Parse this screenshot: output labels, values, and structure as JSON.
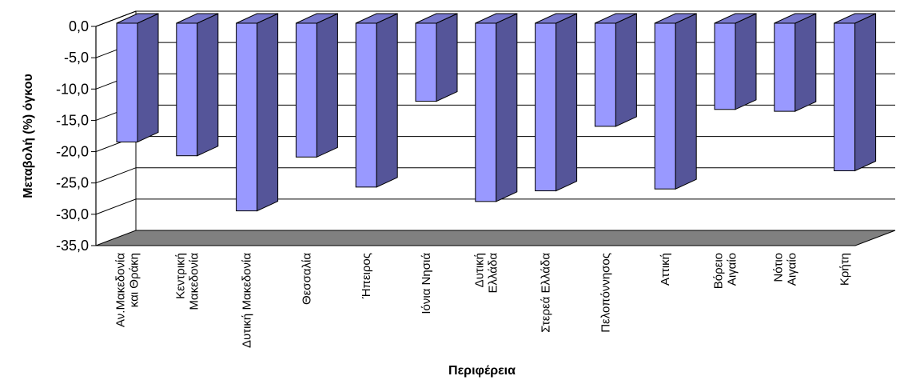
{
  "chart_data": {
    "type": "bar",
    "title": "",
    "xlabel": "Περιφέρεια",
    "ylabel": "Μεταβολή (%) όγκου",
    "ylim": [
      -35,
      0
    ],
    "yticks": [
      "0,0",
      "-5,0",
      "-10,0",
      "-15,0",
      "-20,0",
      "-25,0",
      "-30,0",
      "-35,0"
    ],
    "grid": true,
    "style": "3d",
    "categories": [
      [
        "Αν.Μακεδονία",
        "και Θράκη"
      ],
      [
        "Κεντρική",
        "Μακεδονία"
      ],
      [
        "Δυτική Μακεδονία"
      ],
      [
        "Θεσσαλία"
      ],
      [
        "Ήπειρος"
      ],
      [
        "Ιόνια Νησιά"
      ],
      [
        "Δυτική",
        "Ελλάδα"
      ],
      [
        "Στερεά Ελλάδα"
      ],
      [
        "Πελοπόννησος"
      ],
      [
        "Αττική"
      ],
      [
        "Βόρειο",
        "Αιγαίο"
      ],
      [
        "Νότιο",
        "Αιγαίο"
      ],
      [
        "Κρήτη"
      ]
    ],
    "values": [
      -20.5,
      -22.7,
      -31.5,
      -22.9,
      -27.7,
      -14.0,
      -30.0,
      -28.3,
      -18.0,
      -28.0,
      -15.3,
      -15.6,
      -25.1
    ],
    "colors": {
      "bar_front": "#9999ff",
      "bar_side": "#555599",
      "bar_top": "#7777cc",
      "floor": "#808080",
      "outline": "#000000"
    }
  }
}
